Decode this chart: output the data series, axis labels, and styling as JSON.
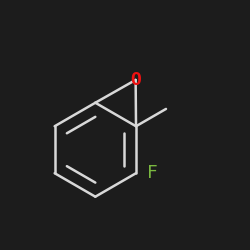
{
  "bg_color": "#1c1c1c",
  "bond_color": "#d8d8d8",
  "o_color": "#ee1111",
  "f_color": "#7ab840",
  "line_width": 1.8,
  "o_label": "O",
  "f_label": "F",
  "o_font_size": 13,
  "f_font_size": 13,
  "figsize": [
    2.5,
    2.5
  ],
  "dpi": 100
}
